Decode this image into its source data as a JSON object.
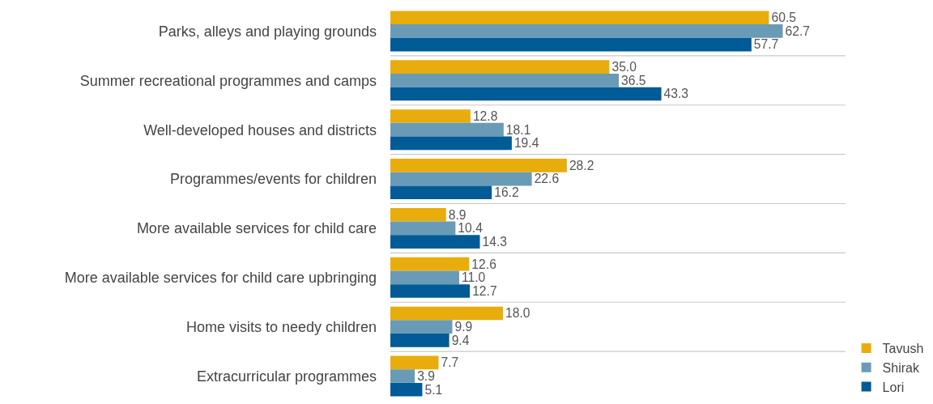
{
  "chart_data": {
    "type": "bar",
    "orientation": "horizontal",
    "grid": "y",
    "legend": "bottom right",
    "categories": [
      "Parks, alleys and playing grounds",
      "Summer recreational programmes and camps",
      "Well-developed houses and districts",
      "Programmes/events for children",
      "More available services for child care",
      "More available services for child care upbringing",
      "Home visits to needy children",
      "Extracurricular programmes"
    ],
    "series": [
      {
        "name": "Tavush",
        "color": "#e8ad0c",
        "values": [
          60.5,
          35.0,
          12.8,
          28.2,
          8.9,
          12.6,
          18.0,
          7.7
        ],
        "value_labels": [
          "60.5",
          "35.0",
          "12.8",
          "28.2",
          "8.9",
          "12.6",
          "18.0",
          "7.7"
        ]
      },
      {
        "name": "Shirak",
        "color": "#6a9bb6",
        "values": [
          62.7,
          36.5,
          18.1,
          22.6,
          10.4,
          11.0,
          9.9,
          3.9
        ],
        "value_labels": [
          "62.7",
          "36.5",
          "18.1",
          "22.6",
          "10.4",
          "11.0",
          "9.9",
          "3.9"
        ]
      },
      {
        "name": "Lori",
        "color": "#005b96",
        "values": [
          57.7,
          43.3,
          19.4,
          16.2,
          14.3,
          12.7,
          9.4,
          5.1
        ],
        "value_labels": [
          "57.7",
          "43.3",
          "19.4",
          "16.2",
          "14.3",
          "12.7",
          "9.4",
          "5.1"
        ]
      }
    ]
  }
}
